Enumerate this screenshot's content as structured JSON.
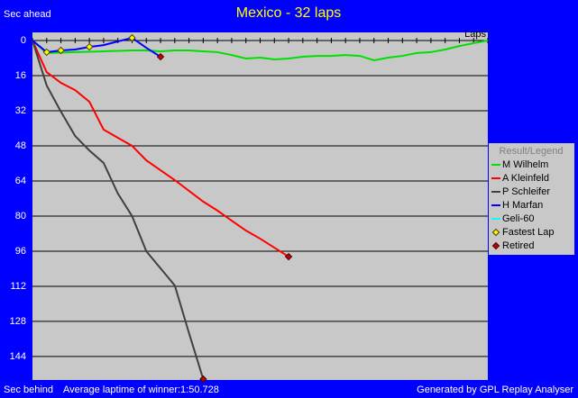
{
  "chart_data": {
    "type": "line",
    "title": "Mexico - 32 laps",
    "y_label_top": "Sec ahead",
    "y_label_bottom": "Sec behind",
    "x_label": "Laps",
    "footer_left": "Average laptime of winner:1:50.728",
    "footer_right": "Generated by GPL Replay Analyser",
    "legend_title": "Result/Legend",
    "fastest_lap_label": "Fastest Lap",
    "retired_label": "Retired",
    "y_inverted": true,
    "xlim": [
      0,
      32
    ],
    "xticks": [
      0,
      1,
      2,
      3,
      4,
      5,
      6,
      7,
      8,
      9,
      10,
      11,
      12,
      13,
      14,
      15,
      16,
      17,
      18,
      19,
      20,
      21,
      22,
      23,
      24,
      25,
      26,
      27,
      28,
      29,
      30,
      31,
      32
    ],
    "ylim": [
      -3.7,
      154.7
    ],
    "yticks": [
      0,
      16,
      32,
      48,
      64,
      80,
      96,
      112,
      128,
      144
    ],
    "grid": true,
    "x": [
      0,
      1,
      2,
      3,
      4,
      5,
      6,
      7,
      8,
      9,
      10,
      11,
      12,
      13,
      14,
      15,
      16,
      17,
      18,
      19,
      20,
      21,
      22,
      23,
      24,
      25,
      26,
      27,
      28,
      29,
      30,
      31,
      32
    ],
    "series": [
      {
        "name": "M Wilhelm",
        "color": "#00e000",
        "retired": false,
        "fastest_laps": [],
        "values": [
          0,
          5.7,
          5.5,
          5.3,
          5.1,
          4.9,
          4.7,
          4.5,
          4.5,
          4.9,
          4.5,
          4.5,
          4.9,
          5.3,
          6.6,
          8.2,
          7.8,
          8.6,
          8.2,
          7.4,
          7.0,
          7.0,
          6.6,
          7.0,
          9.0,
          7.8,
          7.0,
          5.7,
          5.3,
          4.1,
          2.5,
          1.2,
          0
        ]
      },
      {
        "name": "A Kleinfeld",
        "color": "#ff0000",
        "retired": true,
        "fastest_laps": [],
        "values": [
          0,
          14.4,
          19.3,
          22.6,
          27.9,
          40.6,
          44.3,
          48.0,
          54.6,
          59.1,
          63.6,
          68.5,
          73.4,
          77.5,
          82.1,
          86.6,
          90.3,
          94.4,
          98.5,
          null,
          null,
          null,
          null,
          null,
          null,
          null,
          null,
          null,
          null,
          null,
          null,
          null,
          null
        ]
      },
      {
        "name": "P Schleifer",
        "color": "#404040",
        "retired": true,
        "fastest_laps": [],
        "values": [
          0,
          20.5,
          32.4,
          43.5,
          50.1,
          55.8,
          69.7,
          80.0,
          96.0,
          103.8,
          111.6,
          133.3,
          154.3,
          null,
          null,
          null,
          null,
          null,
          null,
          null,
          null,
          null,
          null,
          null,
          null,
          null,
          null,
          null,
          null,
          null,
          null,
          null,
          null
        ]
      },
      {
        "name": "H Marfan",
        "color": "#0000ff",
        "retired": true,
        "fastest_laps": [
          1,
          2,
          4,
          7
        ],
        "values": [
          0,
          5.3,
          4.5,
          4.1,
          2.9,
          2.1,
          0.4,
          -1.2,
          3.3,
          7.4,
          null,
          null,
          null,
          null,
          null,
          null,
          null,
          null,
          null,
          null,
          null,
          null,
          null,
          null,
          null,
          null,
          null,
          null,
          null,
          null,
          null,
          null,
          null
        ]
      },
      {
        "name": "Geli-60",
        "color": "#00ffff",
        "retired": false,
        "fastest_laps": [],
        "values": [
          null,
          null,
          null,
          null,
          null,
          null,
          null,
          null,
          null,
          null,
          null,
          null,
          null,
          null,
          null,
          null,
          null,
          null,
          null,
          null,
          null,
          null,
          null,
          null,
          null,
          null,
          null,
          null,
          null,
          null,
          null,
          null,
          null
        ]
      }
    ]
  }
}
